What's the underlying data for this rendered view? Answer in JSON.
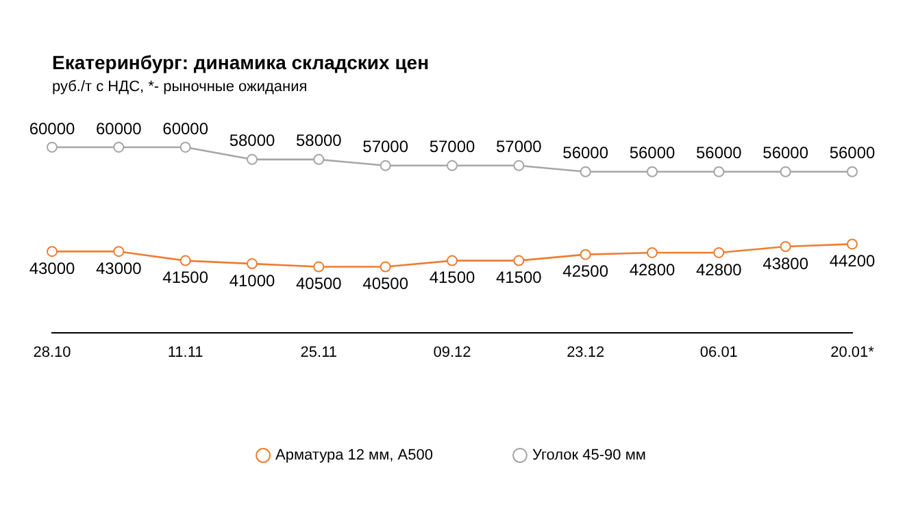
{
  "chart_data": {
    "type": "line",
    "title": "Екатеринбург: динамика складских цен",
    "subtitle": "руб./т с НДС, *- рыночные ожидания",
    "categories": [
      "28.10",
      null,
      "11.11",
      null,
      "25.11",
      null,
      "09.12",
      null,
      "23.12",
      null,
      "06.01",
      null,
      "20.01*"
    ],
    "series": [
      {
        "name": "Арматура 12 мм, А500",
        "color": "#ed7d31",
        "values": [
          43000,
          43000,
          41500,
          41000,
          40500,
          40500,
          41500,
          41500,
          42500,
          42800,
          42800,
          43800,
          44200
        ]
      },
      {
        "name": "Уголок 45-90 мм",
        "color": "#a6a6a6",
        "values": [
          60000,
          60000,
          60000,
          58000,
          58000,
          57000,
          57000,
          57000,
          56000,
          56000,
          56000,
          56000,
          56000
        ]
      }
    ],
    "data_labels": true,
    "grid": false,
    "legend": "bottom",
    "marker": "circle",
    "line_style": "solid",
    "tick_labels": "x"
  }
}
